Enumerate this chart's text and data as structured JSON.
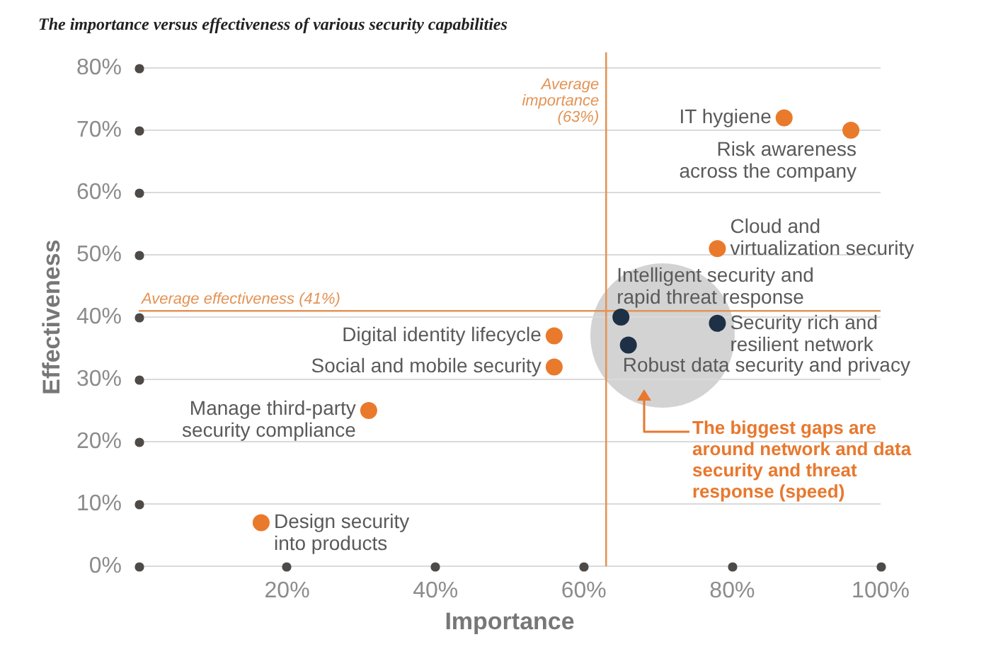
{
  "chart_data": {
    "type": "scatter",
    "title": "The importance versus effectiveness of various security capabilities",
    "xlabel": "Importance",
    "ylabel": "Effectiveness",
    "xlim": [
      0,
      100
    ],
    "ylim": [
      0,
      80
    ],
    "xticks": [
      {
        "value": 20,
        "label": "20%"
      },
      {
        "value": 40,
        "label": "40%"
      },
      {
        "value": 60,
        "label": "60%"
      },
      {
        "value": 80,
        "label": "80%"
      },
      {
        "value": 100,
        "label": "100%"
      }
    ],
    "yticks": [
      {
        "value": 0,
        "label": "0%"
      },
      {
        "value": 10,
        "label": "10%"
      },
      {
        "value": 20,
        "label": "20%"
      },
      {
        "value": 30,
        "label": "30%"
      },
      {
        "value": 40,
        "label": "40%"
      },
      {
        "value": 50,
        "label": "50%"
      },
      {
        "value": 60,
        "label": "60%"
      },
      {
        "value": 70,
        "label": "70%"
      },
      {
        "value": 80,
        "label": "80%"
      }
    ],
    "grid": "y",
    "legend": false,
    "marker": "circle",
    "series": [
      {
        "name": "IT hygiene",
        "color": "#e97a2b",
        "x": [
          87
        ],
        "values": [
          72
        ]
      },
      {
        "name": "Risk awareness across the company",
        "color": "#e97a2b",
        "x": [
          96
        ],
        "values": [
          70
        ]
      },
      {
        "name": "Cloud and virtualization security",
        "color": "#e97a2b",
        "x": [
          78
        ],
        "values": [
          51
        ]
      },
      {
        "name": "Intelligent security and rapid threat response",
        "color": "#1d3045",
        "x": [
          65
        ],
        "values": [
          40
        ]
      },
      {
        "name": "Security rich and resilient network",
        "color": "#1d3045",
        "x": [
          78
        ],
        "values": [
          39
        ]
      },
      {
        "name": "Robust data security and privacy",
        "color": "#1d3045",
        "x": [
          66
        ],
        "values": [
          35.5
        ]
      },
      {
        "name": "Digital identity lifecycle",
        "color": "#e97a2b",
        "x": [
          56
        ],
        "values": [
          37
        ]
      },
      {
        "name": "Social and mobile security",
        "color": "#e97a2b",
        "x": [
          56
        ],
        "values": [
          32
        ]
      },
      {
        "name": "Manage third-party security compliance",
        "color": "#e97a2b",
        "x": [
          31
        ],
        "values": [
          25
        ]
      },
      {
        "name": "Design security into products",
        "color": "#e97a2b",
        "x": [
          16.5
        ],
        "values": [
          7
        ]
      }
    ],
    "ref_lines": [
      {
        "axis": "x",
        "value": 63,
        "label": "Average importance (63%)",
        "color": "#e39456"
      },
      {
        "axis": "y",
        "value": 41,
        "label": "Average effectiveness (41%)",
        "color": "#e39456"
      }
    ],
    "annotations": [
      "The biggest gaps are around network and data security and threat response (speed)"
    ]
  }
}
